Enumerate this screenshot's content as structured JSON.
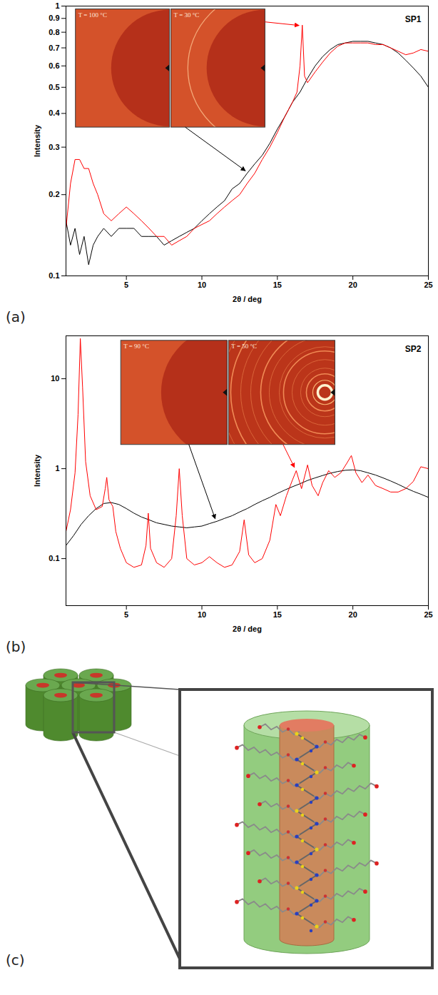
{
  "chart_data": [
    {
      "type": "line",
      "title": "SP1",
      "panel_label": "(a)",
      "x_label": "2θ / deg",
      "y_label": "Intensity",
      "log": "y",
      "xlim": [
        1,
        25
      ],
      "xticks": [
        5,
        10,
        15,
        20,
        25
      ],
      "ylim": [
        0.1,
        1
      ],
      "yticks": [
        0.1,
        0.2,
        0.3,
        0.4,
        0.5,
        0.6,
        0.7,
        0.8,
        0.9,
        1
      ],
      "annotations": [
        "T = 100 °C",
        "T = 30 °C"
      ],
      "series": [
        {
          "color": "#000000",
          "x": [
            1,
            1.3,
            1.6,
            1.9,
            2.2,
            2.5,
            2.8,
            3.1,
            3.5,
            4,
            4.5,
            5,
            5.5,
            6,
            6.5,
            7,
            7.5,
            8,
            8.5,
            9,
            9.5,
            10,
            10.5,
            11,
            11.5,
            12,
            12.5,
            13,
            13.5,
            14,
            14.5,
            15,
            15.5,
            16,
            16.5,
            17,
            17.5,
            18,
            18.5,
            19,
            19.5,
            20,
            20.5,
            21,
            21.5,
            22,
            22.5,
            23,
            23.5,
            24,
            24.5,
            25
          ],
          "values": [
            0.16,
            0.13,
            0.15,
            0.12,
            0.14,
            0.11,
            0.13,
            0.14,
            0.15,
            0.14,
            0.15,
            0.15,
            0.15,
            0.14,
            0.14,
            0.14,
            0.13,
            0.135,
            0.14,
            0.145,
            0.15,
            0.16,
            0.17,
            0.18,
            0.19,
            0.21,
            0.22,
            0.24,
            0.26,
            0.28,
            0.31,
            0.35,
            0.39,
            0.44,
            0.48,
            0.54,
            0.6,
            0.65,
            0.69,
            0.72,
            0.73,
            0.74,
            0.74,
            0.74,
            0.73,
            0.72,
            0.7,
            0.67,
            0.63,
            0.59,
            0.55,
            0.5
          ]
        },
        {
          "color": "#ff0000",
          "x": [
            1,
            1.3,
            1.6,
            1.9,
            2.2,
            2.5,
            2.8,
            3.1,
            3.5,
            4,
            4.5,
            5,
            5.5,
            6,
            6.5,
            7,
            7.5,
            8,
            8.5,
            9,
            9.5,
            10,
            10.5,
            11,
            11.5,
            12,
            12.5,
            13,
            13.5,
            14,
            14.5,
            15,
            15.5,
            16,
            16.3,
            16.5,
            16.65,
            16.8,
            17,
            17.5,
            18,
            18.5,
            19,
            19.5,
            20,
            20.5,
            21,
            21.5,
            22,
            22.5,
            23,
            23.5,
            24,
            24.5,
            25
          ],
          "values": [
            0.15,
            0.22,
            0.27,
            0.27,
            0.25,
            0.25,
            0.22,
            0.2,
            0.17,
            0.16,
            0.17,
            0.18,
            0.17,
            0.16,
            0.15,
            0.14,
            0.14,
            0.13,
            0.135,
            0.14,
            0.15,
            0.155,
            0.16,
            0.17,
            0.18,
            0.19,
            0.2,
            0.22,
            0.24,
            0.27,
            0.3,
            0.34,
            0.39,
            0.44,
            0.48,
            0.6,
            0.85,
            0.55,
            0.52,
            0.57,
            0.62,
            0.67,
            0.71,
            0.73,
            0.73,
            0.73,
            0.73,
            0.72,
            0.72,
            0.7,
            0.68,
            0.66,
            0.67,
            0.69,
            0.68
          ]
        }
      ]
    },
    {
      "type": "line",
      "title": "SP2",
      "panel_label": "(b)",
      "x_label": "2θ / deg",
      "y_label": "Intensity",
      "log": "y",
      "xlim": [
        1,
        25
      ],
      "xticks": [
        5,
        10,
        15,
        20,
        25
      ],
      "ylim": [
        0.03,
        30
      ],
      "yticks": [
        0.1,
        1,
        10
      ],
      "annotations": [
        "T = 90 °C",
        "T = 50 °C"
      ],
      "series": [
        {
          "color": "#000000",
          "x": [
            1,
            1.5,
            2,
            2.5,
            3,
            3.5,
            4,
            4.5,
            5,
            5.5,
            6,
            6.5,
            7,
            7.5,
            8,
            8.5,
            9,
            9.5,
            10,
            10.5,
            11,
            11.5,
            12,
            12.5,
            13,
            13.5,
            14,
            14.5,
            15,
            15.5,
            16,
            16.5,
            17,
            17.5,
            18,
            18.5,
            19,
            19.5,
            20,
            20.5,
            21,
            21.5,
            22,
            22.5,
            23,
            23.5,
            24,
            24.5,
            25
          ],
          "values": [
            0.14,
            0.18,
            0.24,
            0.3,
            0.36,
            0.41,
            0.42,
            0.4,
            0.36,
            0.32,
            0.29,
            0.27,
            0.25,
            0.24,
            0.23,
            0.225,
            0.22,
            0.225,
            0.23,
            0.245,
            0.26,
            0.28,
            0.3,
            0.33,
            0.36,
            0.4,
            0.44,
            0.48,
            0.53,
            0.58,
            0.63,
            0.68,
            0.74,
            0.79,
            0.84,
            0.89,
            0.93,
            0.96,
            0.97,
            0.95,
            0.9,
            0.85,
            0.79,
            0.73,
            0.67,
            0.61,
            0.56,
            0.52,
            0.48
          ]
        },
        {
          "color": "#ff0000",
          "x": [
            1,
            1.3,
            1.6,
            1.8,
            1.95,
            2.1,
            2.3,
            2.6,
            3,
            3.4,
            3.6,
            3.7,
            3.85,
            4.1,
            4.3,
            4.6,
            5,
            5.5,
            6,
            6.3,
            6.45,
            6.6,
            7,
            7.5,
            8,
            8.3,
            8.5,
            8.7,
            9,
            9.5,
            10,
            10.5,
            11,
            11.5,
            12,
            12.5,
            12.8,
            13.1,
            13.5,
            14,
            14.5,
            14.9,
            15.2,
            15.6,
            16,
            16.25,
            16.6,
            17,
            17.3,
            17.7,
            18,
            18.4,
            18.8,
            19.2,
            19.6,
            19.9,
            20.2,
            20.6,
            21,
            21.5,
            22,
            22.5,
            23,
            23.5,
            24,
            24.5,
            25
          ],
          "values": [
            0.2,
            0.35,
            0.9,
            4,
            28,
            8,
            1.2,
            0.5,
            0.35,
            0.38,
            0.6,
            0.8,
            0.45,
            0.38,
            0.2,
            0.13,
            0.09,
            0.08,
            0.085,
            0.14,
            0.32,
            0.13,
            0.09,
            0.08,
            0.1,
            0.3,
            1.0,
            0.3,
            0.1,
            0.085,
            0.09,
            0.105,
            0.09,
            0.08,
            0.085,
            0.12,
            0.27,
            0.11,
            0.09,
            0.1,
            0.16,
            0.4,
            0.3,
            0.5,
            0.75,
            0.95,
            0.6,
            1.1,
            0.65,
            0.5,
            0.7,
            0.95,
            0.8,
            0.9,
            1.15,
            1.4,
            0.9,
            0.7,
            0.85,
            0.65,
            0.6,
            0.55,
            0.55,
            0.6,
            0.72,
            1.05,
            1.0
          ]
        }
      ]
    }
  ],
  "diagram": {
    "panel_label": "(c)"
  }
}
